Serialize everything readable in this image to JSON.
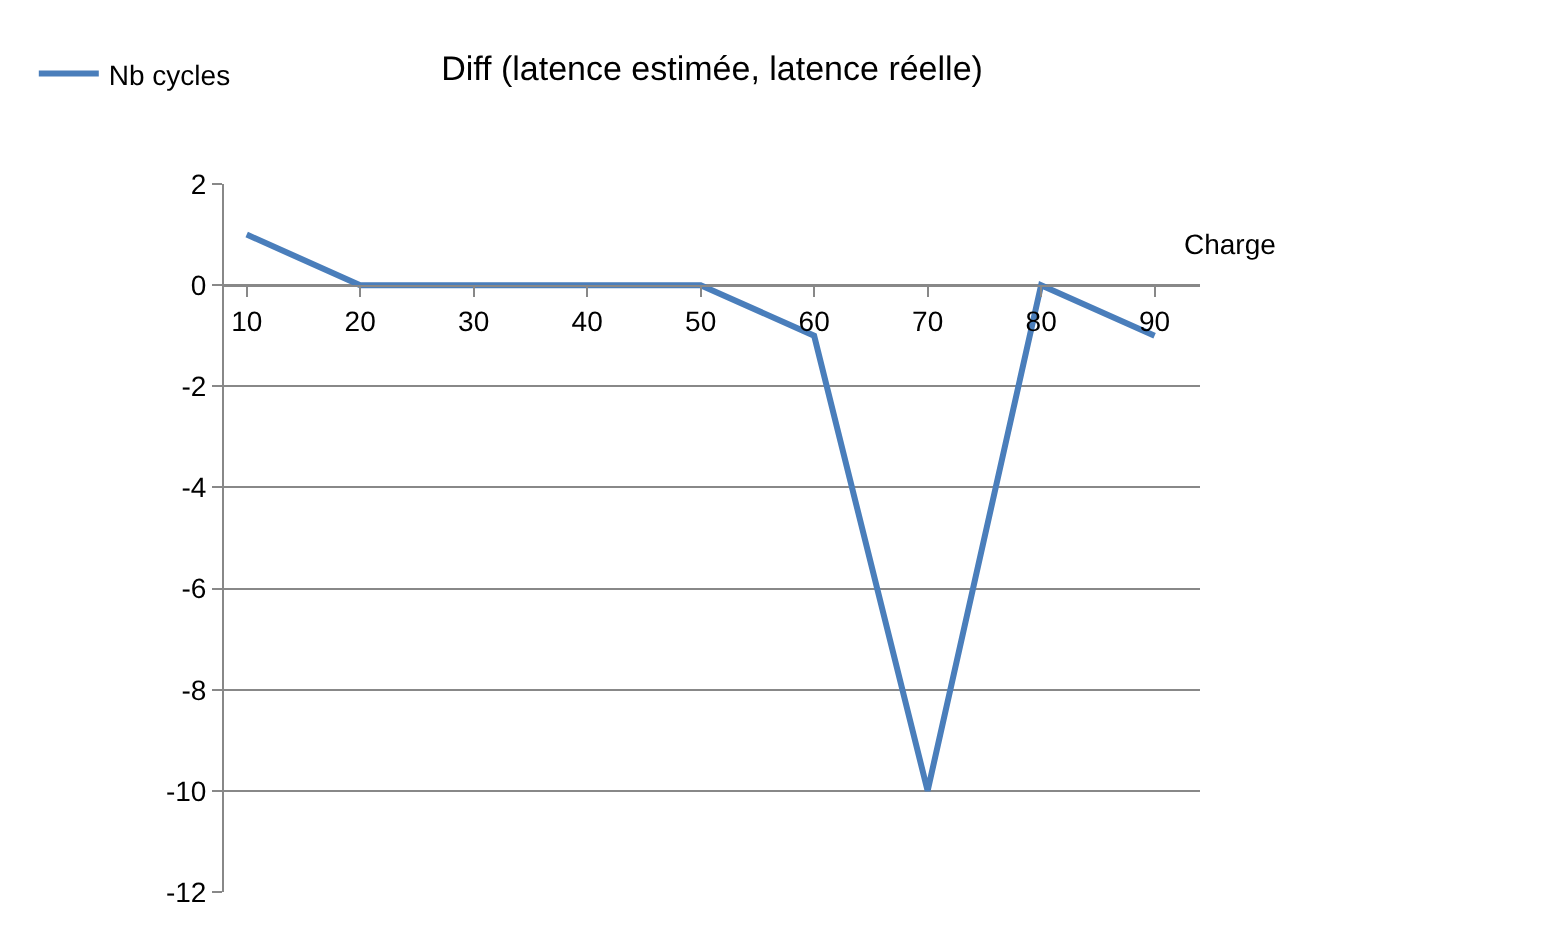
{
  "chart_data": {
    "type": "line",
    "title": "Diff (latence estimée, latence réelle)",
    "xlabel": "Charge",
    "categories": [
      "10",
      "20",
      "30",
      "40",
      "50",
      "60",
      "70",
      "80",
      "90"
    ],
    "series": [
      {
        "name": "Nb cycles",
        "color": "#4a7ebb",
        "values": [
          1,
          0,
          0,
          0,
          0,
          -1,
          -10,
          0,
          -1
        ]
      }
    ],
    "ylim": [
      -12,
      2
    ],
    "yticks": [
      -12,
      -10,
      -8,
      -6,
      -4,
      -2,
      0,
      2
    ],
    "grid": "y",
    "legend": "top left",
    "marker": "none",
    "line_style": "solid"
  }
}
